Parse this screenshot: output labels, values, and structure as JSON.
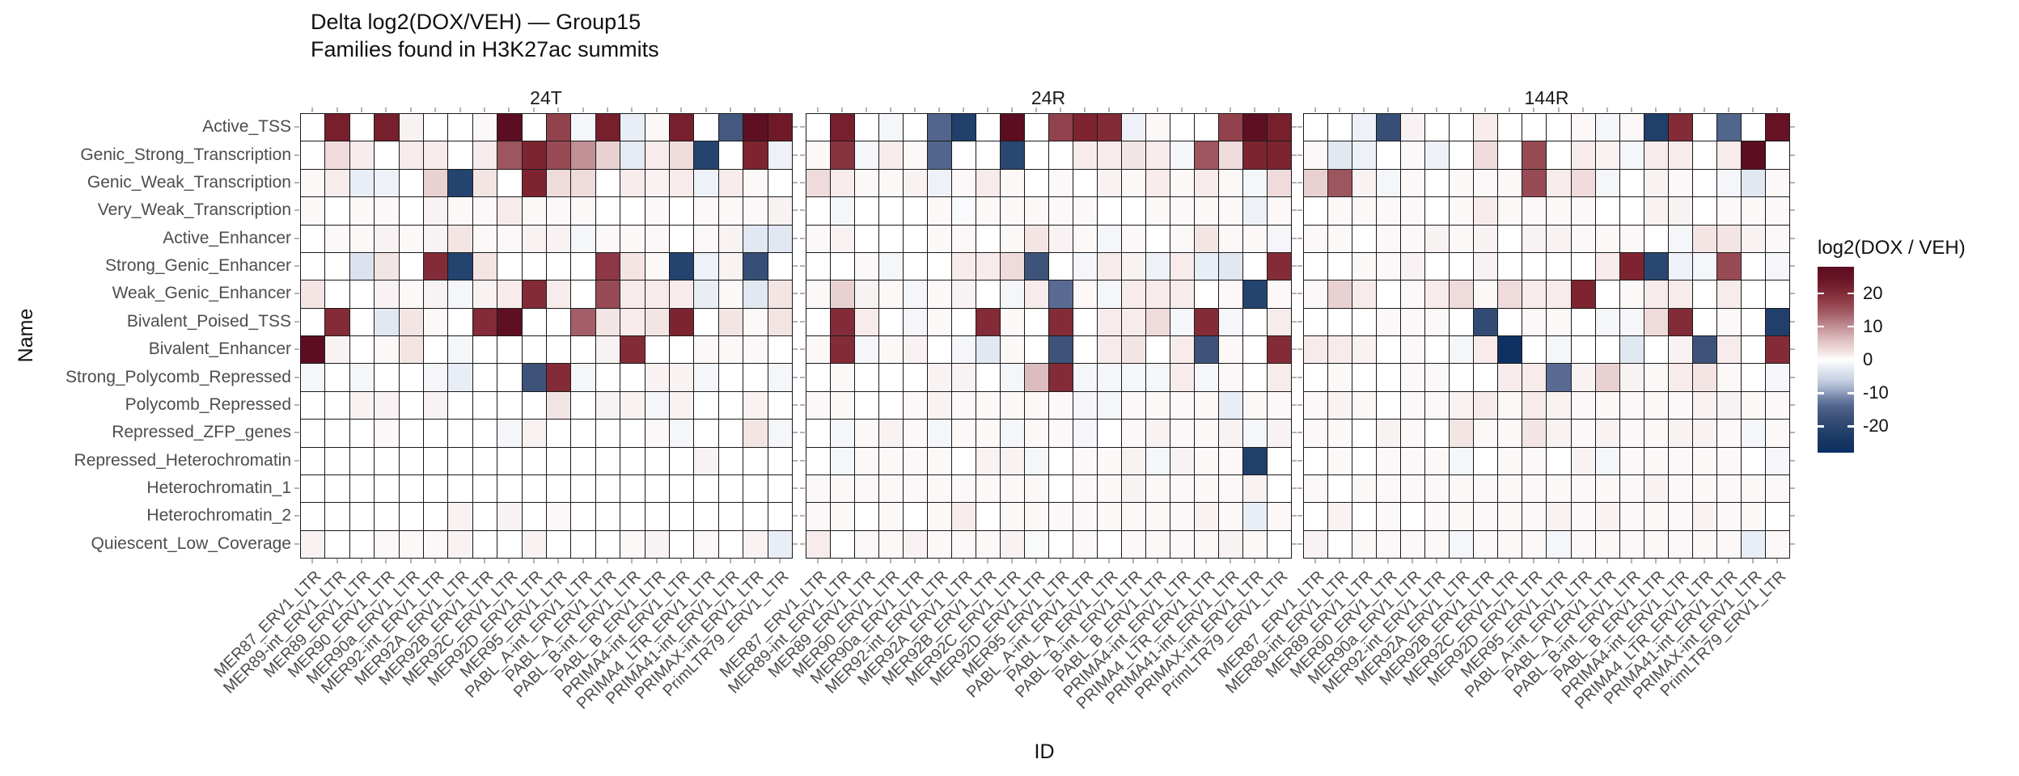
{
  "title": {
    "line1": "Delta log2(DOX/VEH) — Group15",
    "line2": "Families found in H3K27ac summits"
  },
  "axes": {
    "x_title": "ID",
    "y_title": "Name"
  },
  "legend": {
    "title": "log2(DOX / VEH)",
    "ticks": [
      20,
      10,
      0,
      -10,
      -20
    ],
    "domain": [
      -28,
      28
    ],
    "color_positive_max": "#5c0d22",
    "color_zero": "#ffffff",
    "color_negative_max": "#0c3064"
  },
  "chart_data": {
    "type": "heatmap",
    "title": "Delta log2(DOX/VEH) — Group15",
    "subtitle": "Families found in H3K27ac summits",
    "xlabel": "ID",
    "ylabel": "Name",
    "legend_title": "log2(DOX / VEH)",
    "value_range": [
      -28,
      28
    ],
    "legend_position": "right",
    "facets": [
      "24T",
      "24R",
      "144R"
    ],
    "x_categories": [
      "MER87_ERV1_LTR",
      "MER89-int_ERV1_LTR",
      "MER89_ERV1_LTR",
      "MER90_ERV1_LTR",
      "MER90a_ERV1_LTR",
      "MER92-int_ERV1_LTR",
      "MER92A_ERV1_LTR",
      "MER92B_ERV1_LTR",
      "MER92C_ERV1_LTR",
      "MER92D_ERV1_LTR",
      "MER95_ERV1_LTR",
      "PABL_A-int_ERV1_LTR",
      "PABL_A_ERV1_LTR",
      "PABL_B-int_ERV1_LTR",
      "PABL_B_ERV1_LTR",
      "PRIMA4-int_ERV1_LTR",
      "PRIMA4_LTR_ERV1_LTR",
      "PRIMA41-int_ERV1_LTR",
      "PRIMAX-int_ERV1_LTR",
      "PrimLTR79_ERV1_LTR"
    ],
    "y_categories": [
      "Active_TSS",
      "Genic_Strong_Transcription",
      "Genic_Weak_Transcription",
      "Very_Weak_Transcription",
      "Active_Enhancer",
      "Strong_Genic_Enhancer",
      "Weak_Genic_Enhancer",
      "Bivalent_Poised_TSS",
      "Bivalent_Enhancer",
      "Strong_Polycomb_Repressed",
      "Polycomb_Repressed",
      "Repressed_ZFP_genes",
      "Repressed_Heterochromatin",
      "Heterochromatin_1",
      "Heterochromatin_2",
      "Quiescent_Low_Coverage"
    ],
    "series": [
      {
        "name": "24T",
        "values": [
          [
            0,
            22,
            0,
            22,
            1,
            0,
            0,
            0.5,
            28,
            0,
            17,
            -1,
            22,
            -2,
            0.5,
            22,
            0,
            -16,
            27,
            23
          ],
          [
            0,
            3,
            1.5,
            0,
            1.5,
            1.5,
            0,
            1.5,
            15,
            21,
            16,
            10,
            4,
            -2.5,
            1.5,
            3,
            -21,
            0,
            21,
            -1.5
          ],
          [
            0.5,
            1.5,
            -2,
            -1.5,
            0,
            4,
            -21,
            2,
            0,
            21,
            3,
            3,
            0,
            1.5,
            1,
            1.5,
            -1.5,
            1.5,
            0.5,
            0
          ],
          [
            0.5,
            0,
            0.5,
            0.5,
            0,
            1,
            0.5,
            0.5,
            1.5,
            0.5,
            0.5,
            0.5,
            0,
            0,
            0.5,
            0,
            0.5,
            0.5,
            0.5,
            1
          ],
          [
            0,
            0.5,
            0.5,
            1,
            0.5,
            1,
            2,
            0.5,
            0.5,
            1,
            1,
            -1,
            0.5,
            0.5,
            0.5,
            0,
            0.5,
            1,
            -3,
            -3
          ],
          [
            0,
            0,
            -4,
            2,
            0,
            20,
            -21,
            2,
            0,
            0,
            0,
            0,
            18,
            2,
            0.5,
            -21,
            -1.5,
            1,
            -18,
            0
          ],
          [
            2,
            0,
            0,
            1,
            0.5,
            1,
            -1,
            1,
            1.5,
            20,
            1.5,
            0,
            16,
            1.5,
            1.5,
            1.5,
            -2,
            0.5,
            -3,
            2
          ],
          [
            0,
            20,
            0,
            -3,
            2,
            0.5,
            0,
            20,
            27,
            0,
            0,
            14,
            2,
            1.5,
            2,
            21,
            0,
            2,
            0.5,
            2
          ],
          [
            28,
            1,
            0,
            0.5,
            2,
            0,
            -1,
            0,
            0,
            0,
            0,
            0,
            1,
            20,
            0,
            0,
            0.5,
            0.5,
            0.5,
            0
          ],
          [
            -1,
            0,
            -1,
            0,
            0,
            -1,
            -2,
            0,
            0,
            -17,
            20,
            -1,
            0,
            0,
            1,
            1,
            -1,
            0,
            0,
            -1
          ],
          [
            0,
            0,
            1,
            1,
            0,
            1,
            0,
            0,
            0,
            0,
            2,
            0,
            1,
            1,
            -1,
            1,
            0,
            0,
            1,
            0
          ],
          [
            0,
            0,
            0,
            0.5,
            0,
            0,
            0,
            0,
            -1,
            1,
            0,
            0,
            0,
            0,
            0.5,
            -1,
            0,
            0,
            2,
            -1
          ],
          [
            0,
            0,
            0,
            0,
            0,
            0,
            0,
            0,
            0,
            0,
            0,
            0,
            0,
            0,
            0,
            0,
            1,
            0,
            0,
            0
          ],
          [
            0,
            0,
            0,
            0,
            0,
            0,
            0,
            0,
            0,
            0,
            0,
            0,
            0,
            0,
            0,
            0,
            0,
            0,
            0,
            0
          ],
          [
            0,
            0,
            0,
            0,
            0,
            0,
            1,
            0,
            1,
            0,
            0.5,
            0,
            0,
            0,
            0,
            0,
            0,
            0,
            0,
            0
          ],
          [
            1,
            0,
            0,
            0.5,
            0.5,
            0.5,
            1,
            0,
            0,
            1,
            0,
            0,
            0,
            0.5,
            1,
            0,
            0.5,
            0,
            1,
            -2
          ]
        ]
      },
      {
        "name": "24R",
        "values": [
          [
            0,
            22,
            0,
            -1,
            0,
            -14,
            -22,
            0,
            28,
            0,
            17,
            21,
            20,
            -1.5,
            0.5,
            0,
            0,
            17,
            27,
            22
          ],
          [
            0.5,
            19,
            -1,
            1.5,
            0.5,
            -14,
            0,
            0,
            -20,
            0,
            0,
            1.5,
            1.5,
            2,
            1.5,
            -1,
            15,
            3,
            21,
            21
          ],
          [
            3,
            1.5,
            0.5,
            0.5,
            1,
            -1.5,
            0.5,
            1.5,
            0.5,
            0,
            0.5,
            0,
            1,
            0.5,
            1.5,
            0.5,
            1.5,
            0.5,
            -1,
            3
          ],
          [
            0,
            -1,
            0,
            0,
            0,
            0.5,
            -0.5,
            0.5,
            0.5,
            0.5,
            0.5,
            0.5,
            0,
            0,
            0.5,
            0.5,
            0.5,
            0.5,
            -1.5,
            0.5
          ],
          [
            0.5,
            1,
            0,
            0,
            0,
            0.5,
            0.5,
            0,
            0.5,
            2,
            1,
            0.5,
            -1,
            0.5,
            0,
            0.5,
            2,
            0.5,
            0.5,
            -1
          ],
          [
            0,
            0,
            0.5,
            -1,
            0,
            0,
            1.5,
            1.5,
            3,
            -17,
            0,
            -1,
            1.5,
            1,
            -1.5,
            1.5,
            -2,
            -3,
            0,
            20
          ],
          [
            0.5,
            4,
            1,
            0.5,
            -1,
            0.5,
            1,
            0,
            -1,
            1.5,
            -13,
            0.5,
            -1,
            1.5,
            1.5,
            1.5,
            0,
            0.5,
            -21,
            0.5
          ],
          [
            0,
            20,
            1.5,
            0,
            -1,
            0.5,
            0,
            20,
            0.5,
            0,
            20,
            0,
            1.5,
            1.5,
            3,
            -1,
            20,
            -1,
            0,
            1.5
          ],
          [
            0.5,
            20,
            -1,
            0.5,
            1,
            0,
            -1,
            -3,
            0.5,
            0,
            -17,
            0,
            1.5,
            2,
            0,
            1.5,
            -17,
            0.5,
            0,
            20
          ],
          [
            0,
            0.5,
            0,
            0,
            0,
            1,
            1,
            0,
            -1,
            6,
            20,
            -1,
            -1,
            -1,
            -1,
            1.5,
            -1,
            0.5,
            0,
            1.5
          ],
          [
            0.5,
            0.5,
            0,
            0,
            0.5,
            1,
            0.5,
            0.5,
            0.5,
            0.5,
            0.5,
            -1,
            -1,
            0.5,
            0.5,
            0.5,
            0.5,
            -2,
            0.5,
            0.5
          ],
          [
            0,
            -1,
            0.5,
            1,
            0.5,
            -1,
            0.5,
            0.5,
            -1,
            0.5,
            0.5,
            -1,
            0,
            0.5,
            1,
            0.5,
            0.5,
            1,
            -1,
            1
          ],
          [
            0,
            -1,
            0.5,
            0.5,
            0.5,
            0.5,
            0,
            1,
            1,
            -1,
            0,
            0.5,
            0.5,
            1,
            -1,
            1,
            0.5,
            0.5,
            -22,
            0
          ],
          [
            0.5,
            0.5,
            0.5,
            0.5,
            0.5,
            0.5,
            0.5,
            0.5,
            0.5,
            0.5,
            0,
            0.5,
            0.5,
            1,
            0.5,
            0.5,
            0.5,
            0.5,
            1,
            0
          ],
          [
            0.5,
            0.5,
            0,
            0.5,
            0,
            0.5,
            1.5,
            0,
            0.5,
            0.5,
            0.5,
            0.5,
            0.5,
            0.5,
            0.5,
            0.5,
            1,
            0.5,
            -2,
            0.5
          ],
          [
            1.5,
            0,
            0.5,
            0.5,
            1,
            0.5,
            0.5,
            0.5,
            1,
            -0.5,
            0,
            0.5,
            0,
            0.5,
            0.5,
            0.5,
            0.5,
            1,
            0.5,
            0
          ]
        ]
      },
      {
        "name": "144R",
        "values": [
          [
            0,
            0,
            -1.5,
            -18,
            1,
            0,
            0,
            1.5,
            0,
            0,
            0,
            0.5,
            -1,
            0.5,
            -22,
            20,
            0,
            -14,
            0,
            25
          ],
          [
            0.5,
            -3,
            -1.5,
            0,
            0.5,
            -1.5,
            0,
            3,
            0,
            16,
            0,
            1.5,
            1,
            -1,
            1.5,
            1.5,
            0,
            1.5,
            28,
            0
          ],
          [
            4,
            15,
            1,
            -1,
            0.5,
            0,
            0.5,
            0.5,
            0.5,
            16,
            1.5,
            3,
            -1,
            0,
            1,
            0.5,
            0,
            -1,
            -3,
            0.5
          ],
          [
            0,
            0.5,
            0.5,
            0.5,
            0.5,
            0,
            0.5,
            1.5,
            0.5,
            0.5,
            0.5,
            0.5,
            0,
            0,
            1,
            1,
            0,
            0.5,
            0.5,
            0.5
          ],
          [
            0.5,
            0.5,
            0,
            0.5,
            0.5,
            1,
            0.5,
            1,
            0,
            1,
            1,
            0.5,
            0.5,
            0.5,
            0,
            -1,
            2,
            2,
            1,
            0.5
          ],
          [
            0,
            0,
            0.5,
            0.5,
            1,
            0,
            0,
            1,
            0,
            0,
            0,
            0,
            1.5,
            21,
            -20,
            -1.5,
            -1,
            16,
            0,
            -1
          ],
          [
            0.5,
            4,
            1.5,
            0,
            0.5,
            1.5,
            3,
            0.5,
            3,
            1.5,
            1.5,
            21,
            0,
            0.5,
            1.5,
            1.5,
            0,
            1.5,
            0,
            0
          ],
          [
            0,
            0,
            0,
            0.5,
            0.5,
            0.5,
            0,
            -19,
            0,
            0.5,
            0.5,
            0,
            -1,
            -1,
            3,
            20,
            0,
            0.5,
            0,
            -22
          ],
          [
            1.5,
            1.5,
            1,
            0,
            0.5,
            0,
            -1,
            1.5,
            -27,
            0,
            -1,
            0,
            0,
            -3,
            0,
            1,
            -17,
            1.5,
            0,
            20
          ],
          [
            0,
            0.5,
            0,
            0,
            0.5,
            0.5,
            0,
            0,
            1.5,
            1.5,
            -13,
            1,
            4,
            1,
            0.5,
            1.5,
            2,
            0.5,
            0,
            -1
          ],
          [
            0.5,
            1,
            0.5,
            0,
            0.5,
            0.5,
            1,
            1.5,
            0.5,
            1.5,
            1,
            0.5,
            0.5,
            0.5,
            0.5,
            0.5,
            1,
            1,
            0.5,
            0.5
          ],
          [
            0.5,
            0.5,
            0,
            1,
            0.5,
            0,
            2,
            0.5,
            0.5,
            2,
            1,
            0.5,
            1,
            0.5,
            0.5,
            1,
            1,
            0.5,
            -1,
            0.5
          ],
          [
            0,
            0.5,
            0,
            0.5,
            0.5,
            0.5,
            -1,
            0,
            0.5,
            0.5,
            0,
            1,
            -1,
            0.5,
            0.5,
            0.5,
            0.5,
            0.5,
            0,
            -1
          ],
          [
            0.5,
            0,
            0.5,
            0.5,
            0.5,
            0.5,
            0.5,
            0.5,
            0.5,
            0.5,
            0.5,
            0.5,
            0.5,
            0.5,
            1,
            0.5,
            0.5,
            0.5,
            0.5,
            0.5
          ],
          [
            0,
            1,
            0,
            0.5,
            0,
            0.5,
            0.5,
            0.5,
            0.5,
            0.5,
            1,
            0.5,
            1,
            0.5,
            0.5,
            0.5,
            1,
            0.5,
            0.5,
            0
          ],
          [
            1,
            0,
            0.5,
            0.5,
            0.5,
            0.5,
            -1,
            0.5,
            0.5,
            0.5,
            -1,
            0.5,
            0.5,
            0.5,
            0.5,
            0.5,
            0.5,
            0.5,
            -2,
            0.5
          ]
        ]
      }
    ]
  }
}
